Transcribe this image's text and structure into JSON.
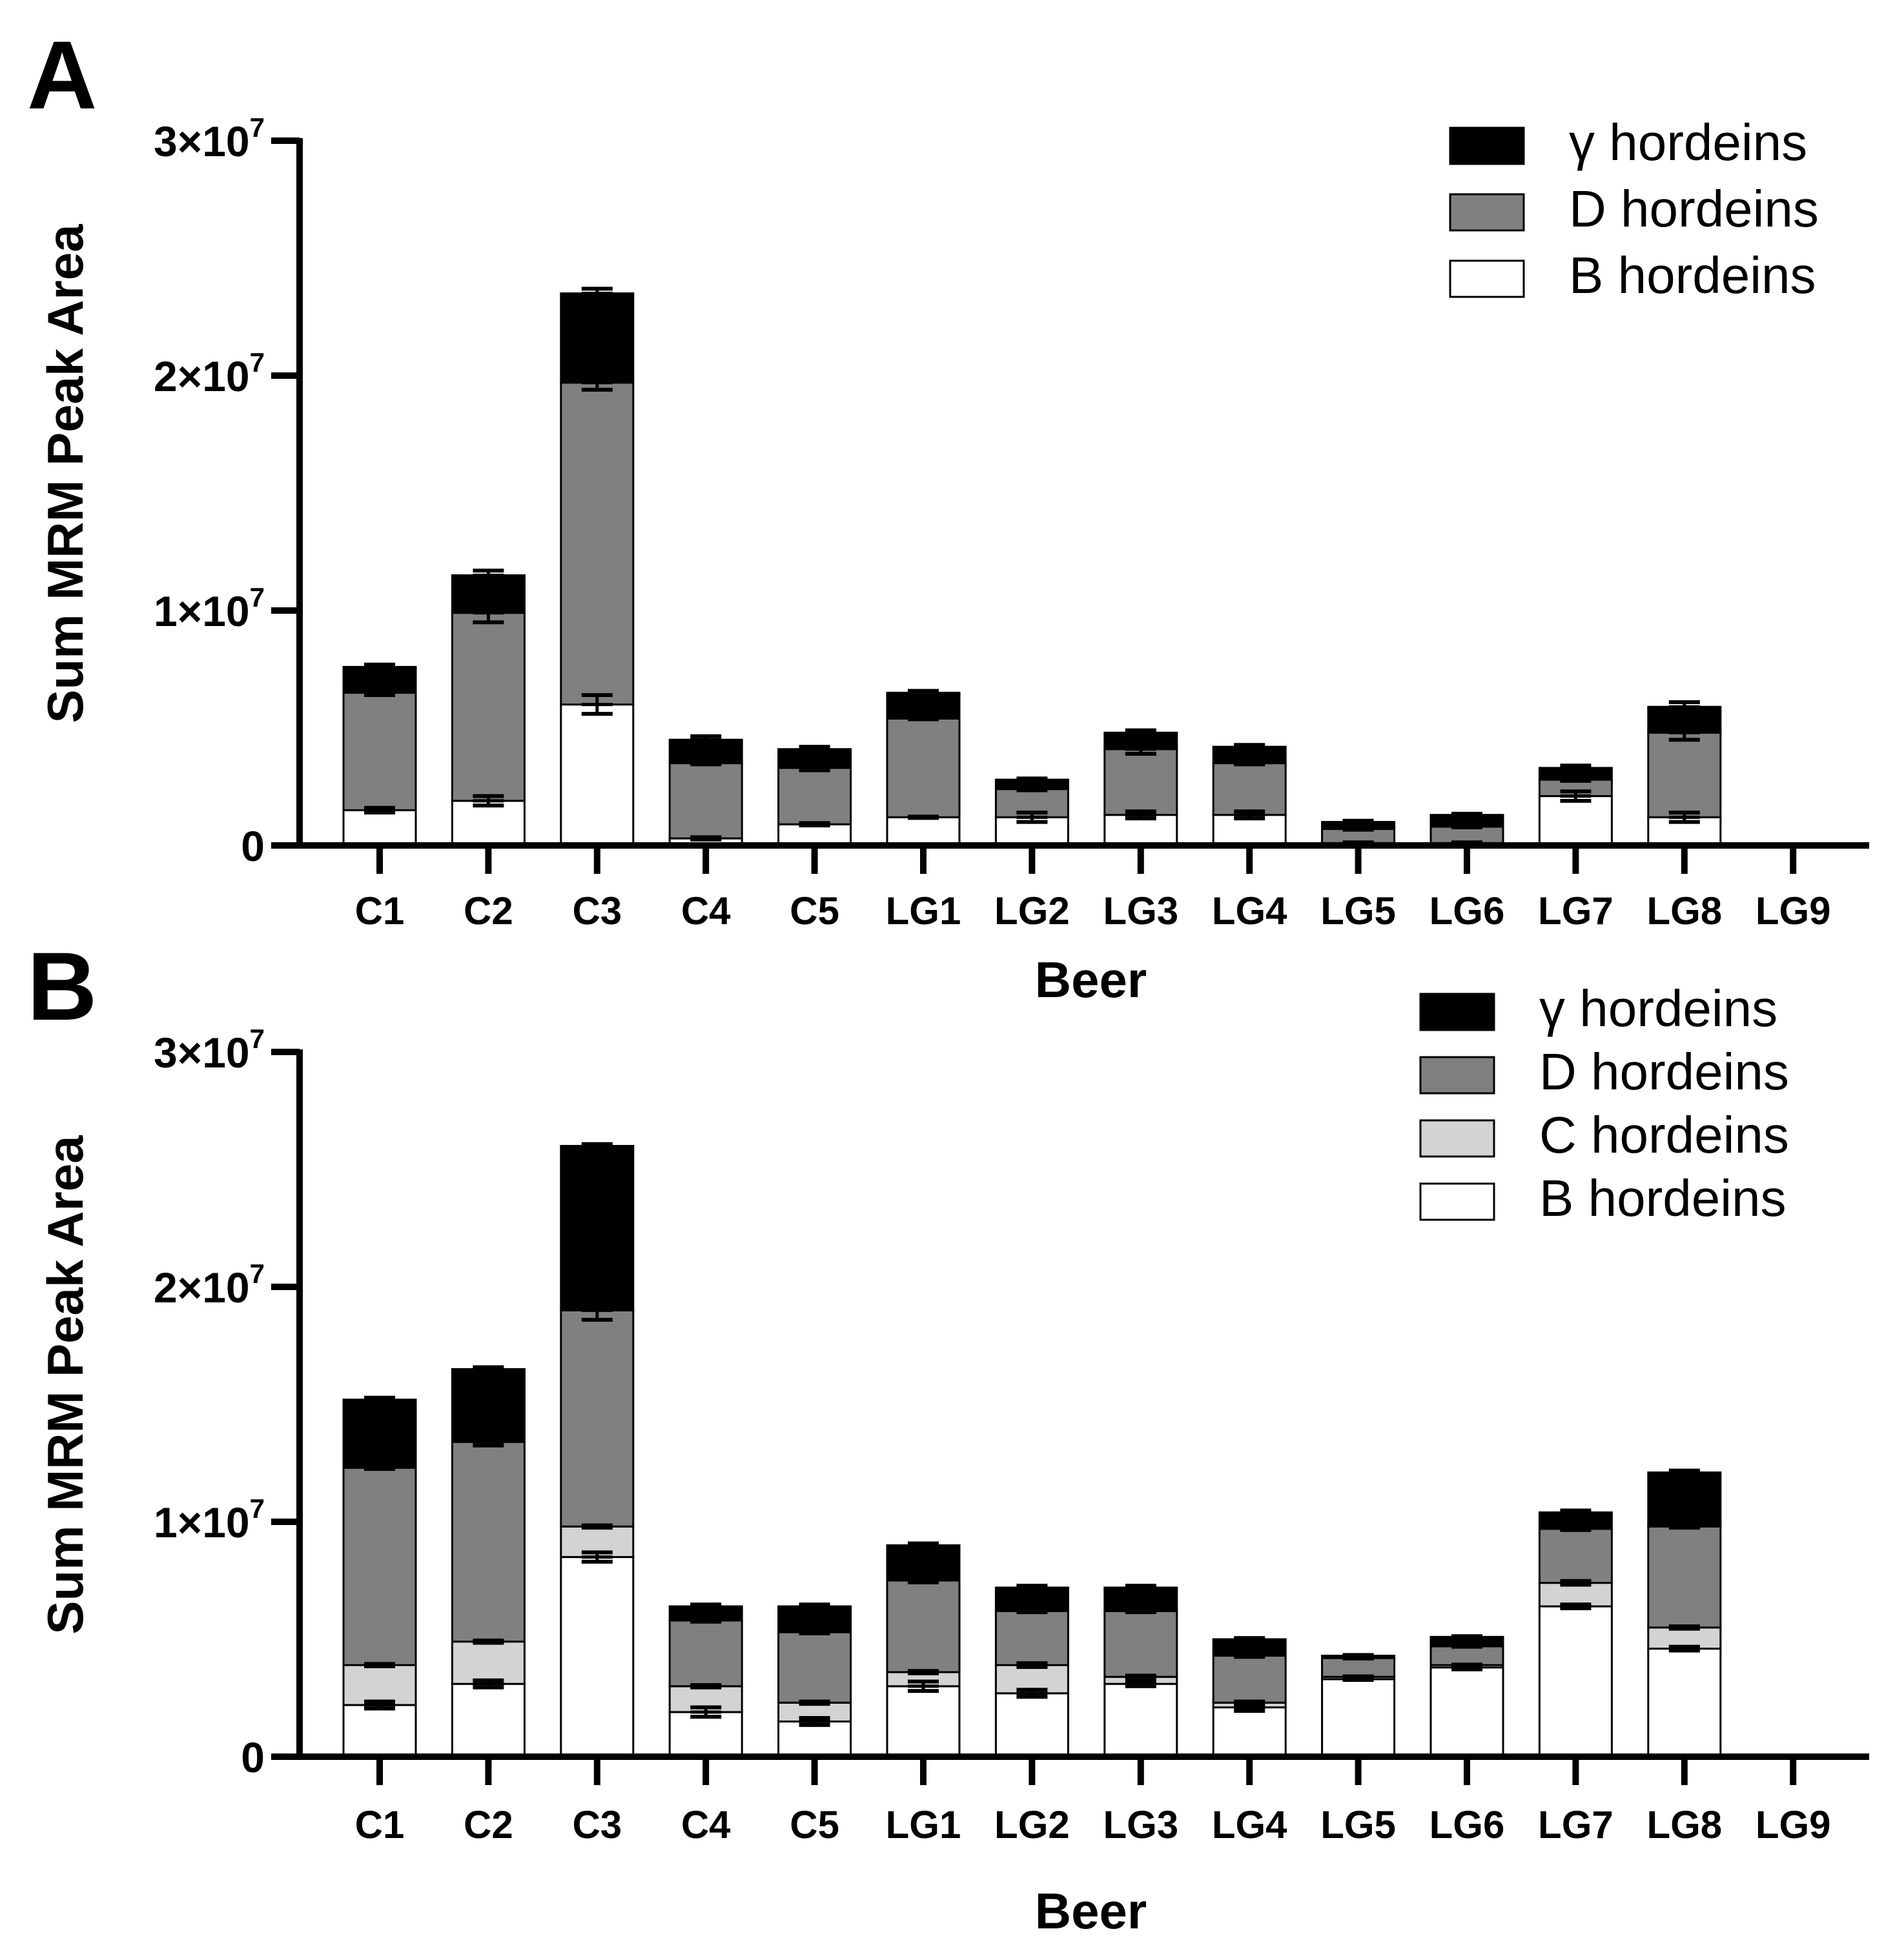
{
  "figure": {
    "colors": {
      "gamma": "#000000",
      "D": "#808080",
      "C": "#d3d3d3",
      "B": "#ffffff"
    }
  },
  "chart_data": [
    {
      "panel": "A",
      "type": "bar",
      "stacked": true,
      "title": "",
      "xlabel": "Beer",
      "ylabel": "Sum MRM Peak Area",
      "ylim": [
        0,
        30000000
      ],
      "yticks": [
        {
          "value": 0,
          "mantissa": "0",
          "exp": ""
        },
        {
          "value": 10000000,
          "mantissa": "1×10",
          "exp": "7"
        },
        {
          "value": 20000000,
          "mantissa": "2×10",
          "exp": "7"
        },
        {
          "value": 30000000,
          "mantissa": "3×10",
          "exp": "7"
        }
      ],
      "categories": [
        "C1",
        "C2",
        "C3",
        "C4",
        "C5",
        "LG1",
        "LG2",
        "LG3",
        "LG4",
        "LG5",
        "LG6",
        "LG7",
        "LG8",
        "LG9"
      ],
      "legend_position": "top-right",
      "series": [
        {
          "name": "B hordeins",
          "key": "B",
          "values": [
            1500000,
            1900000,
            6000000,
            300000,
            900000,
            1200000,
            1200000,
            1300000,
            1300000,
            100000,
            100000,
            2100000,
            1200000,
            0
          ],
          "errors": [
            100000,
            200000,
            400000,
            50000,
            50000,
            30000,
            200000,
            150000,
            150000,
            30000,
            30000,
            200000,
            200000,
            0
          ]
        },
        {
          "name": "D hordeins",
          "key": "D",
          "values": [
            5000000,
            8000000,
            13700000,
            3200000,
            2400000,
            4200000,
            1200000,
            2800000,
            2200000,
            600000,
            700000,
            700000,
            3600000,
            0
          ],
          "errors": [
            100000,
            400000,
            300000,
            50000,
            100000,
            30000,
            50000,
            200000,
            50000,
            30000,
            30000,
            50000,
            300000,
            0
          ]
        },
        {
          "name": "γ hordeins",
          "key": "gamma",
          "values": [
            1100000,
            1600000,
            3800000,
            1000000,
            800000,
            1100000,
            400000,
            700000,
            700000,
            300000,
            500000,
            500000,
            1100000,
            0
          ],
          "errors": [
            100000,
            200000,
            200000,
            150000,
            100000,
            80000,
            50000,
            100000,
            80000,
            50000,
            50000,
            100000,
            200000,
            0
          ]
        }
      ],
      "legend": [
        {
          "name": "γ hordeins",
          "key": "gamma"
        },
        {
          "name": "D hordeins",
          "key": "D"
        },
        {
          "name": "B hordeins",
          "key": "B"
        }
      ]
    },
    {
      "panel": "B",
      "type": "bar",
      "stacked": true,
      "title": "",
      "xlabel": "Beer",
      "ylabel": "Sum MRM Peak Area",
      "ylim": [
        0,
        30000000
      ],
      "yticks": [
        {
          "value": 0,
          "mantissa": "0",
          "exp": ""
        },
        {
          "value": 10000000,
          "mantissa": "1×10",
          "exp": "7"
        },
        {
          "value": 20000000,
          "mantissa": "2×10",
          "exp": "7"
        },
        {
          "value": 30000000,
          "mantissa": "3×10",
          "exp": "7"
        }
      ],
      "categories": [
        "C1",
        "C2",
        "C3",
        "C4",
        "C5",
        "LG1",
        "LG2",
        "LG3",
        "LG4",
        "LG5",
        "LG6",
        "LG7",
        "LG8",
        "LG9"
      ],
      "legend_position": "top-right",
      "series": [
        {
          "name": "B hordeins",
          "key": "B",
          "values": [
            2200000,
            3100000,
            8500000,
            1900000,
            1500000,
            3000000,
            2700000,
            3100000,
            2100000,
            3300000,
            3800000,
            6400000,
            4600000,
            0
          ],
          "errors": [
            150000,
            150000,
            200000,
            200000,
            150000,
            200000,
            150000,
            100000,
            150000,
            30000,
            80000,
            80000,
            80000,
            0
          ]
        },
        {
          "name": "C hordeins",
          "key": "C",
          "values": [
            1700000,
            1800000,
            1300000,
            1100000,
            800000,
            600000,
            1200000,
            300000,
            200000,
            100000,
            100000,
            1000000,
            900000,
            0
          ],
          "errors": [
            50000,
            50000,
            50000,
            50000,
            50000,
            50000,
            80000,
            50000,
            50000,
            20000,
            20000,
            80000,
            50000,
            0
          ]
        },
        {
          "name": "D hordeins",
          "key": "D",
          "values": [
            8400000,
            8500000,
            9200000,
            2800000,
            3000000,
            3900000,
            2300000,
            2800000,
            2000000,
            800000,
            800000,
            2300000,
            4300000,
            0
          ],
          "errors": [
            50000,
            150000,
            400000,
            50000,
            50000,
            80000,
            50000,
            50000,
            50000,
            20000,
            20000,
            50000,
            50000,
            0
          ]
        },
        {
          "name": "γ hordeins",
          "key": "gamma",
          "values": [
            2900000,
            3100000,
            7000000,
            600000,
            1100000,
            1500000,
            1000000,
            1000000,
            700000,
            100000,
            400000,
            700000,
            2300000,
            0
          ],
          "errors": [
            80000,
            80000,
            80000,
            80000,
            80000,
            80000,
            80000,
            80000,
            50000,
            30000,
            30000,
            80000,
            80000,
            0
          ]
        }
      ],
      "legend": [
        {
          "name": "γ hordeins",
          "key": "gamma"
        },
        {
          "name": "D hordeins",
          "key": "D"
        },
        {
          "name": "C hordeins",
          "key": "C"
        },
        {
          "name": "B hordeins",
          "key": "B"
        }
      ]
    }
  ]
}
